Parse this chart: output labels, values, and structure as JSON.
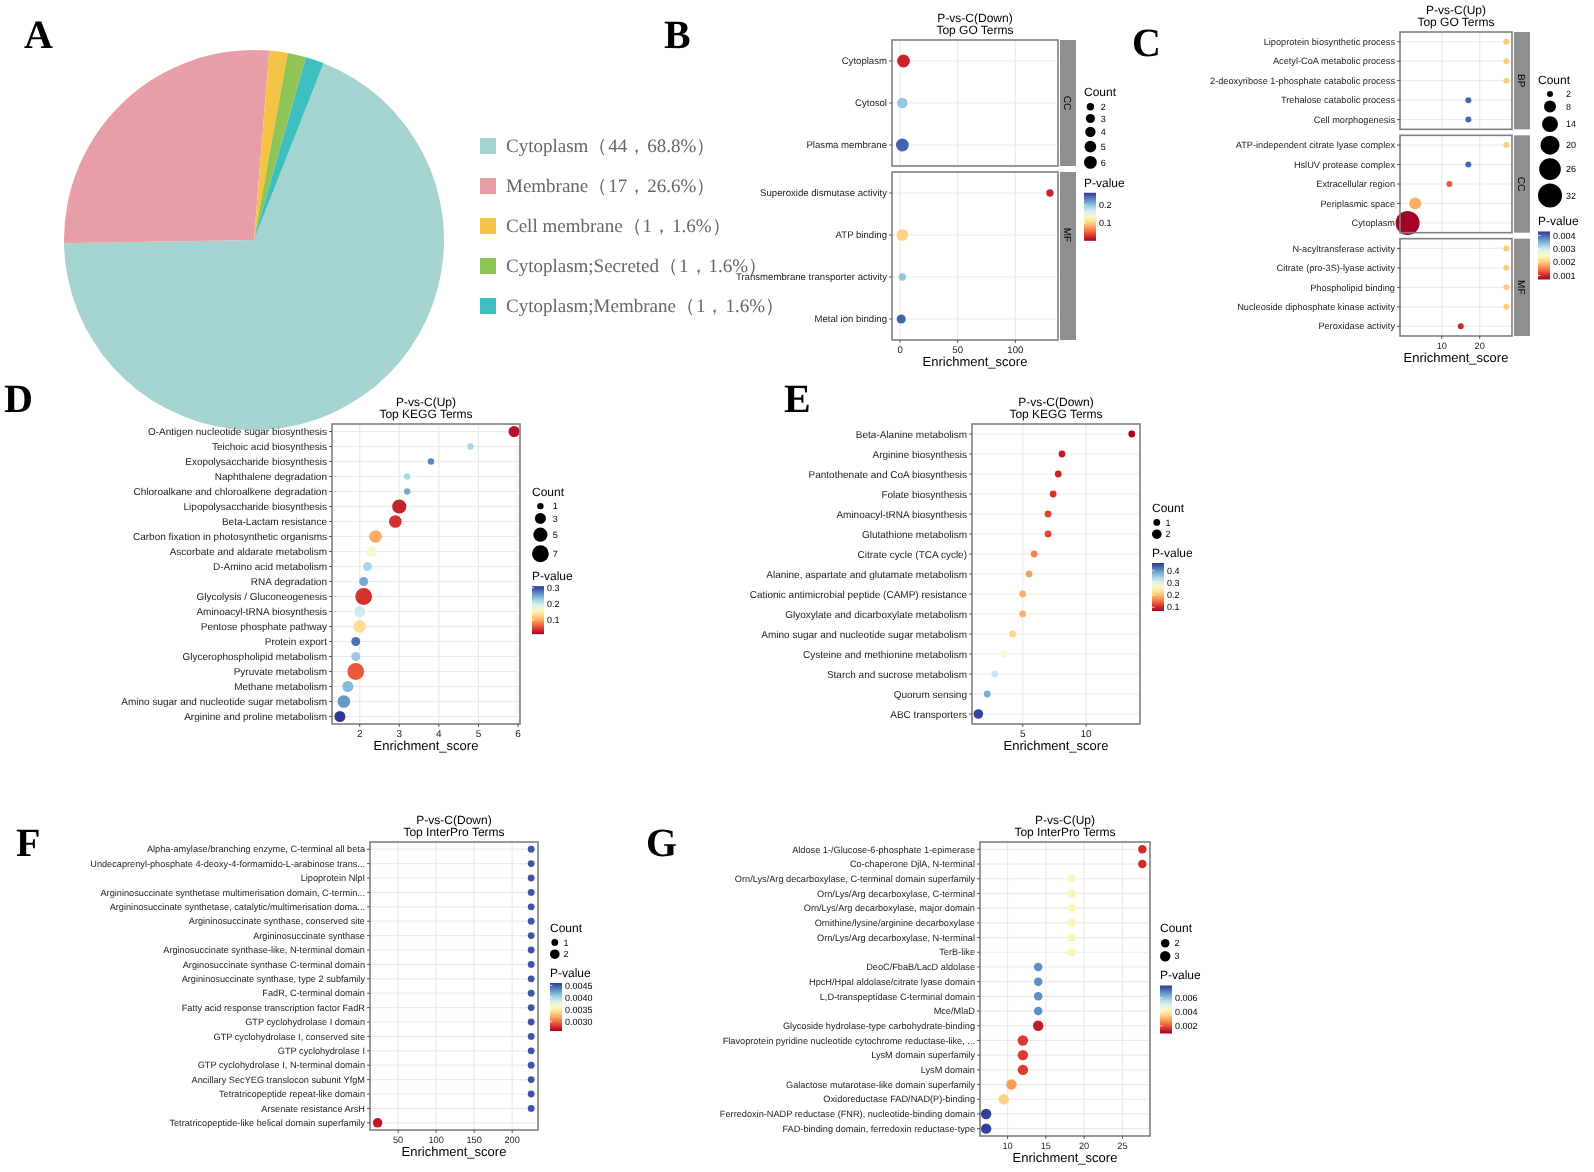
{
  "chart_data": [
    {
      "type": "pie",
      "annotations": [
        "A"
      ],
      "legend": "right",
      "categories": [
        "Cytoplasm（44，68.8%）",
        "Membrane（17，26.6%）",
        "Cell membrane（1，1.6%）",
        "Cytoplasm;Secreted（1，1.6%）",
        "Cytoplasm;Membrane（1，1.6%）"
      ],
      "values": [
        44,
        17,
        1,
        1,
        1
      ],
      "colors": [
        "#a5d4d0",
        "#e89ea6",
        "#f5c343",
        "#8fc556",
        "#3cbfbe"
      ]
    },
    {
      "type": "scatter",
      "orientation": "horizontal",
      "title": "P-vs-C(Down)",
      "subtitle": "Top GO Terms",
      "annotations": [
        "B"
      ],
      "xlabel": "Enrichment_score",
      "grid": true,
      "legend_title": "Count",
      "clabel": "P-value",
      "categories": [
        "Cytoplasm",
        "Cytosol",
        "Plasma membrane",
        "Superoxide dismutase activity",
        "ATP binding",
        "Transmembrane transporter activity",
        "Metal ion binding"
      ],
      "y2_categories": [
        null,
        "CC",
        null,
        null,
        "MF",
        null,
        null
      ],
      "values": [
        3,
        2,
        2,
        130,
        2,
        2,
        1
      ],
      "sizes": [
        6,
        4,
        6,
        2,
        5,
        2,
        3
      ],
      "cvalues": [
        0.02,
        0.2,
        0.25,
        0.02,
        0.1,
        0.2,
        0.25
      ],
      "size_legend": [
        2,
        3,
        4,
        5,
        6
      ],
      "clim": [
        0,
        0.27
      ],
      "cticks": [
        0.1,
        0.2
      ],
      "xlim": [
        -7,
        137
      ],
      "xticks": [
        0,
        50,
        100
      ]
    },
    {
      "type": "scatter",
      "orientation": "horizontal",
      "title": "P-vs-C(Up)",
      "subtitle": "Top GO Terms",
      "annotations": [
        "C"
      ],
      "xlabel": "Enrichment_score",
      "grid": true,
      "legend_title": "Count",
      "clabel": "P-value",
      "categories": [
        "Lipoprotein biosynthetic process",
        "Acetyl-CoA metabolic process",
        "2-deoxyribose 1-phosphate catabolic process",
        "Trehalose catabolic process",
        "Cell morphogenesis",
        "ATP-independent citrate lyase complex",
        "HslUV protease complex",
        "Extracellular region",
        "Periplasmic space",
        "Cytoplasm",
        "N-acyltransferase activity",
        "Citrate (pro-3S)-lyase activity",
        "Phospholipid binding",
        "Nucleoside diphosphate kinase activity",
        "Peroxidase activity"
      ],
      "y2_categories": [
        null,
        null,
        "BP",
        null,
        null,
        null,
        null,
        "CC",
        null,
        null,
        null,
        null,
        "MF",
        null,
        null
      ],
      "values": [
        27,
        27,
        27,
        17,
        17,
        27,
        17,
        12,
        3,
        1,
        27,
        27,
        27,
        27,
        15
      ],
      "sizes": [
        2,
        2,
        2,
        2,
        2,
        2,
        2,
        2,
        8,
        32,
        2,
        2,
        2,
        2,
        2
      ],
      "cvalues": [
        0.002,
        0.002,
        0.002,
        0.004,
        0.004,
        0.002,
        0.004,
        0.0013,
        0.0018,
        0.0007,
        0.002,
        0.002,
        0.002,
        0.002,
        0.001
      ],
      "size_legend": [
        2,
        8,
        14,
        20,
        26,
        32
      ],
      "clim": [
        0.0007,
        0.0043
      ],
      "cticks": [
        0.001,
        0.002,
        0.003,
        0.004
      ],
      "xlim": [
        -1,
        28.5
      ],
      "xticks": [
        10,
        20
      ]
    },
    {
      "type": "scatter",
      "orientation": "horizontal",
      "title": "P-vs-C(Up)",
      "subtitle": "Top KEGG Terms",
      "annotations": [
        "D"
      ],
      "xlabel": "Enrichment_score",
      "grid": true,
      "legend_title": "Count",
      "clabel": "P-value",
      "categories": [
        "O-Antigen nucleotide sugar biosynthesis",
        "Teichoic acid biosynthesis",
        "Exopolysaccharide biosynthesis",
        "Naphthalene degradation",
        "Chloroalkane and chloroalkene degradation",
        "Lipopolysaccharide biosynthesis",
        "Beta-Lactam resistance",
        "Carbon fixation in photosynthetic organisms",
        "Ascorbate and aldarate metabolism",
        "D-Amino acid metabolism",
        "RNA degradation",
        "Glycolysis / Gluconeogenesis",
        "Aminoacyl-tRNA biosynthesis",
        "Pentose phosphate pathway",
        "Protein export",
        "Glycerophospholipid metabolism",
        "Pyruvate metabolism",
        "Methane metabolism",
        "Amino sugar and nucleotide sugar metabolism",
        "Arginine and proline metabolism"
      ],
      "values": [
        5.9,
        4.8,
        3.8,
        3.2,
        3.2,
        3.0,
        2.9,
        2.4,
        2.3,
        2.2,
        2.1,
        2.1,
        2.0,
        2.0,
        1.9,
        1.9,
        1.9,
        1.7,
        1.6,
        1.5
      ],
      "sizes": [
        3,
        1,
        1,
        1,
        1,
        5,
        4,
        4,
        3,
        2,
        2,
        7,
        3,
        4,
        2,
        2,
        7,
        3,
        4,
        3
      ],
      "cvalues": [
        0.02,
        0.22,
        0.27,
        0.22,
        0.25,
        0.03,
        0.04,
        0.1,
        0.17,
        0.22,
        0.25,
        0.04,
        0.2,
        0.13,
        0.28,
        0.23,
        0.06,
        0.24,
        0.26,
        0.31
      ],
      "size_legend": [
        1,
        3,
        5,
        7
      ],
      "clim": [
        0.01,
        0.31
      ],
      "cticks": [
        0.1,
        0.2,
        0.3
      ],
      "xlim": [
        1.3,
        6.05
      ],
      "xticks": [
        2,
        3,
        4,
        5,
        6
      ]
    },
    {
      "type": "scatter",
      "orientation": "horizontal",
      "title": "P-vs-C(Down)",
      "subtitle": "Top KEGG Terms",
      "annotations": [
        "E"
      ],
      "xlabel": "Enrichment_score",
      "grid": true,
      "legend_title": "Count",
      "clabel": "P-value",
      "categories": [
        "Beta-Alanine metabolism",
        "Arginine biosynthesis",
        "Pantothenate and CoA biosynthesis",
        "Folate biosynthesis",
        "Aminoacyl-tRNA biosynthesis",
        "Glutathione metabolism",
        "Citrate cycle (TCA cycle)",
        "Alanine, aspartate and glutamate metabolism",
        "Cationic antimicrobial peptide (CAMP) resistance",
        "Glyoxylate and dicarboxylate metabolism",
        "Amino sugar and nucleotide sugar metabolism",
        "Cysteine and methionine metabolism",
        "Starch and sucrose metabolism",
        "Quorum sensing",
        "ABC transporters"
      ],
      "values": [
        13.6,
        8.1,
        7.8,
        7.4,
        7,
        7,
        5.9,
        5.5,
        5,
        5,
        4.2,
        3.5,
        2.8,
        2.2,
        1.5
      ],
      "sizes": [
        1,
        1,
        1,
        1,
        1,
        1,
        1,
        1,
        1,
        1,
        1,
        1,
        1,
        1,
        2
      ],
      "cvalues": [
        0.07,
        0.09,
        0.1,
        0.11,
        0.12,
        0.12,
        0.16,
        0.18,
        0.19,
        0.19,
        0.22,
        0.27,
        0.32,
        0.38,
        0.45
      ],
      "size_legend": [
        1,
        2
      ],
      "clim": [
        0.07,
        0.46
      ],
      "cticks": [
        0.1,
        0.2,
        0.3,
        0.4
      ],
      "xlim": [
        1,
        14.25
      ],
      "xticks": [
        5,
        10
      ]
    },
    {
      "type": "scatter",
      "orientation": "horizontal",
      "title": "P-vs-C(Down)",
      "subtitle": "Top InterPro Terms",
      "annotations": [
        "F"
      ],
      "xlabel": "Enrichment_score",
      "grid": true,
      "legend_title": "Count",
      "clabel": "P-value",
      "categories": [
        "Alpha-amylase/branching enzyme, C-terminal all beta",
        "Undecaprenyl-phosphate 4-deoxy-4-formamido-L-arabinose trans...",
        "Lipoprotein NlpI",
        "Argininosuccinate synthetase multimerisation domain, C-termin...",
        "Argininosuccinate synthetase, catalytic/multimerisation doma...",
        "Argininosuccinate synthase, conserved site",
        "Argininosuccinate synthase",
        "Arginosuccinate synthase-like, N-terminal domain",
        "Arginosuccinate synthase C-terminal domain",
        "Argininosuccinate synthase, type 2 subfamily",
        "FadR, C-terminal domain",
        "Fatty acid response transcription factor FadR",
        "GTP cyclohydrolase I domain",
        "GTP cyclohydrolase I, conserved site",
        "GTP cyclohydrolase I",
        "GTP cyclohydrolase I, N-terminal domain",
        "Ancillary SecYEG translocon subunit YfgM",
        "Tetratricopeptide repeat-like domain",
        "Arsenate resistance ArsH",
        "Tetratricopeptide-like helical domain superfamily"
      ],
      "values": [
        225,
        225,
        225,
        225,
        225,
        225,
        225,
        225,
        225,
        225,
        225,
        225,
        225,
        225,
        225,
        225,
        225,
        225,
        225,
        23
      ],
      "sizes": [
        1,
        1,
        1,
        1,
        1,
        1,
        1,
        1,
        1,
        1,
        1,
        1,
        1,
        1,
        1,
        1,
        1,
        1,
        1,
        2
      ],
      "cvalues": [
        0.0045,
        0.0045,
        0.0045,
        0.0045,
        0.0045,
        0.0045,
        0.0045,
        0.0045,
        0.0045,
        0.0045,
        0.0045,
        0.0045,
        0.0045,
        0.0045,
        0.0045,
        0.0045,
        0.0045,
        0.0045,
        0.0045,
        0.0027
      ],
      "size_legend": [
        1,
        2
      ],
      "clim": [
        0.0026,
        0.0046
      ],
      "cticks": [
        {
          "value": 0.003,
          "label": "0.0030"
        },
        0.0035,
        {
          "value": 0.004,
          "label": "0.0040"
        },
        0.0045
      ],
      "xlim": [
        13,
        234
      ],
      "xticks": [
        50,
        100,
        150,
        200
      ]
    },
    {
      "type": "scatter",
      "orientation": "horizontal",
      "title": "P-vs-C(Up)",
      "subtitle": "Top InterPro Terms",
      "annotations": [
        "G"
      ],
      "xlabel": "Enrichment_score",
      "grid": true,
      "legend_title": "Count",
      "clabel": "P-value",
      "categories": [
        "Aldose 1-/Glucose-6-phosphate 1-epimerase",
        "Co-chaperone DjlA, N-terminal",
        "Orn/Lys/Arg decarboxylase, C-terminal domain superfamily",
        "Orn/Lys/Arg decarboxylase, C-terminal",
        "Orn/Lys/Arg decarboxylase, major domain",
        "Ornithine/lysine/arginine decarboxylase",
        "Orn/Lys/Arg decarboxylase, N-terminal",
        "TerB-like",
        "DeoC/FbaB/LacD aldolase",
        "HpcH/HpaI aldolase/citrate lyase domain",
        "L,D-transpeptidase C-terminal domain",
        "Mce/MlaD",
        "Glycoside hydrolase-type carbohydrate-binding",
        "Flavoprotein pyridine nucleotide cytochrome reductase-like, ...",
        "LysM domain superfamily",
        "LysM domain",
        "Galactose mutarotase-like domain superfamily",
        "Oxidoreductase FAD/NAD(P)-binding",
        "Ferredoxin-NADP reductase (FNR), nucleotide-binding domain",
        "FAD-binding domain, ferredoxin reductase-type"
      ],
      "values": [
        27.6,
        27.6,
        18.4,
        18.4,
        18.4,
        18.4,
        18.4,
        18.4,
        14,
        14,
        14,
        14,
        14,
        12,
        12,
        12,
        10.5,
        9.5,
        7.2,
        7.2
      ],
      "sizes": [
        2,
        2,
        2,
        2,
        2,
        2,
        2,
        2,
        2,
        2,
        2,
        2,
        3,
        3,
        3,
        3,
        3,
        3,
        3,
        3
      ],
      "cvalues": [
        0.0015,
        0.0015,
        0.0042,
        0.0042,
        0.0042,
        0.0042,
        0.0042,
        0.0042,
        0.0068,
        0.0068,
        0.0068,
        0.0068,
        0.0013,
        0.0017,
        0.0017,
        0.0017,
        0.0028,
        0.0035,
        0.0077,
        0.0077
      ],
      "size_legend": [
        2,
        3
      ],
      "clim": [
        0.0009,
        0.0078
      ],
      "cticks": [
        0.002,
        0.004,
        0.006
      ],
      "xlim": [
        6.4,
        28.6
      ],
      "xticks": [
        10,
        15,
        20,
        25
      ]
    }
  ]
}
